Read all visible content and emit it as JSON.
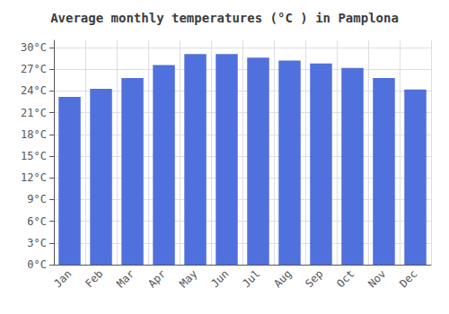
{
  "chart_data": {
    "type": "bar",
    "title": "Average monthly temperatures (°C ) in Pamplona",
    "categories": [
      "Jan",
      "Feb",
      "Mar",
      "Apr",
      "May",
      "Jun",
      "Jul",
      "Aug",
      "Sep",
      "Oct",
      "Nov",
      "Dec"
    ],
    "values": [
      23.2,
      24.3,
      25.8,
      27.6,
      29.1,
      29.1,
      28.6,
      28.2,
      27.8,
      27.2,
      25.8,
      24.2
    ],
    "ylim": [
      0,
      31
    ],
    "yticks": [
      {
        "value": 0,
        "label": "0°C"
      },
      {
        "value": 3,
        "label": "3°C"
      },
      {
        "value": 6,
        "label": "6°C"
      },
      {
        "value": 9,
        "label": "9°C"
      },
      {
        "value": 12,
        "label": "12°C"
      },
      {
        "value": 15,
        "label": "15°C"
      },
      {
        "value": 18,
        "label": "18°C"
      },
      {
        "value": 21,
        "label": "21°C"
      },
      {
        "value": 24,
        "label": "24°C"
      },
      {
        "value": 27,
        "label": "27°C"
      },
      {
        "value": 30,
        "label": "30°C"
      }
    ],
    "grid": true
  }
}
